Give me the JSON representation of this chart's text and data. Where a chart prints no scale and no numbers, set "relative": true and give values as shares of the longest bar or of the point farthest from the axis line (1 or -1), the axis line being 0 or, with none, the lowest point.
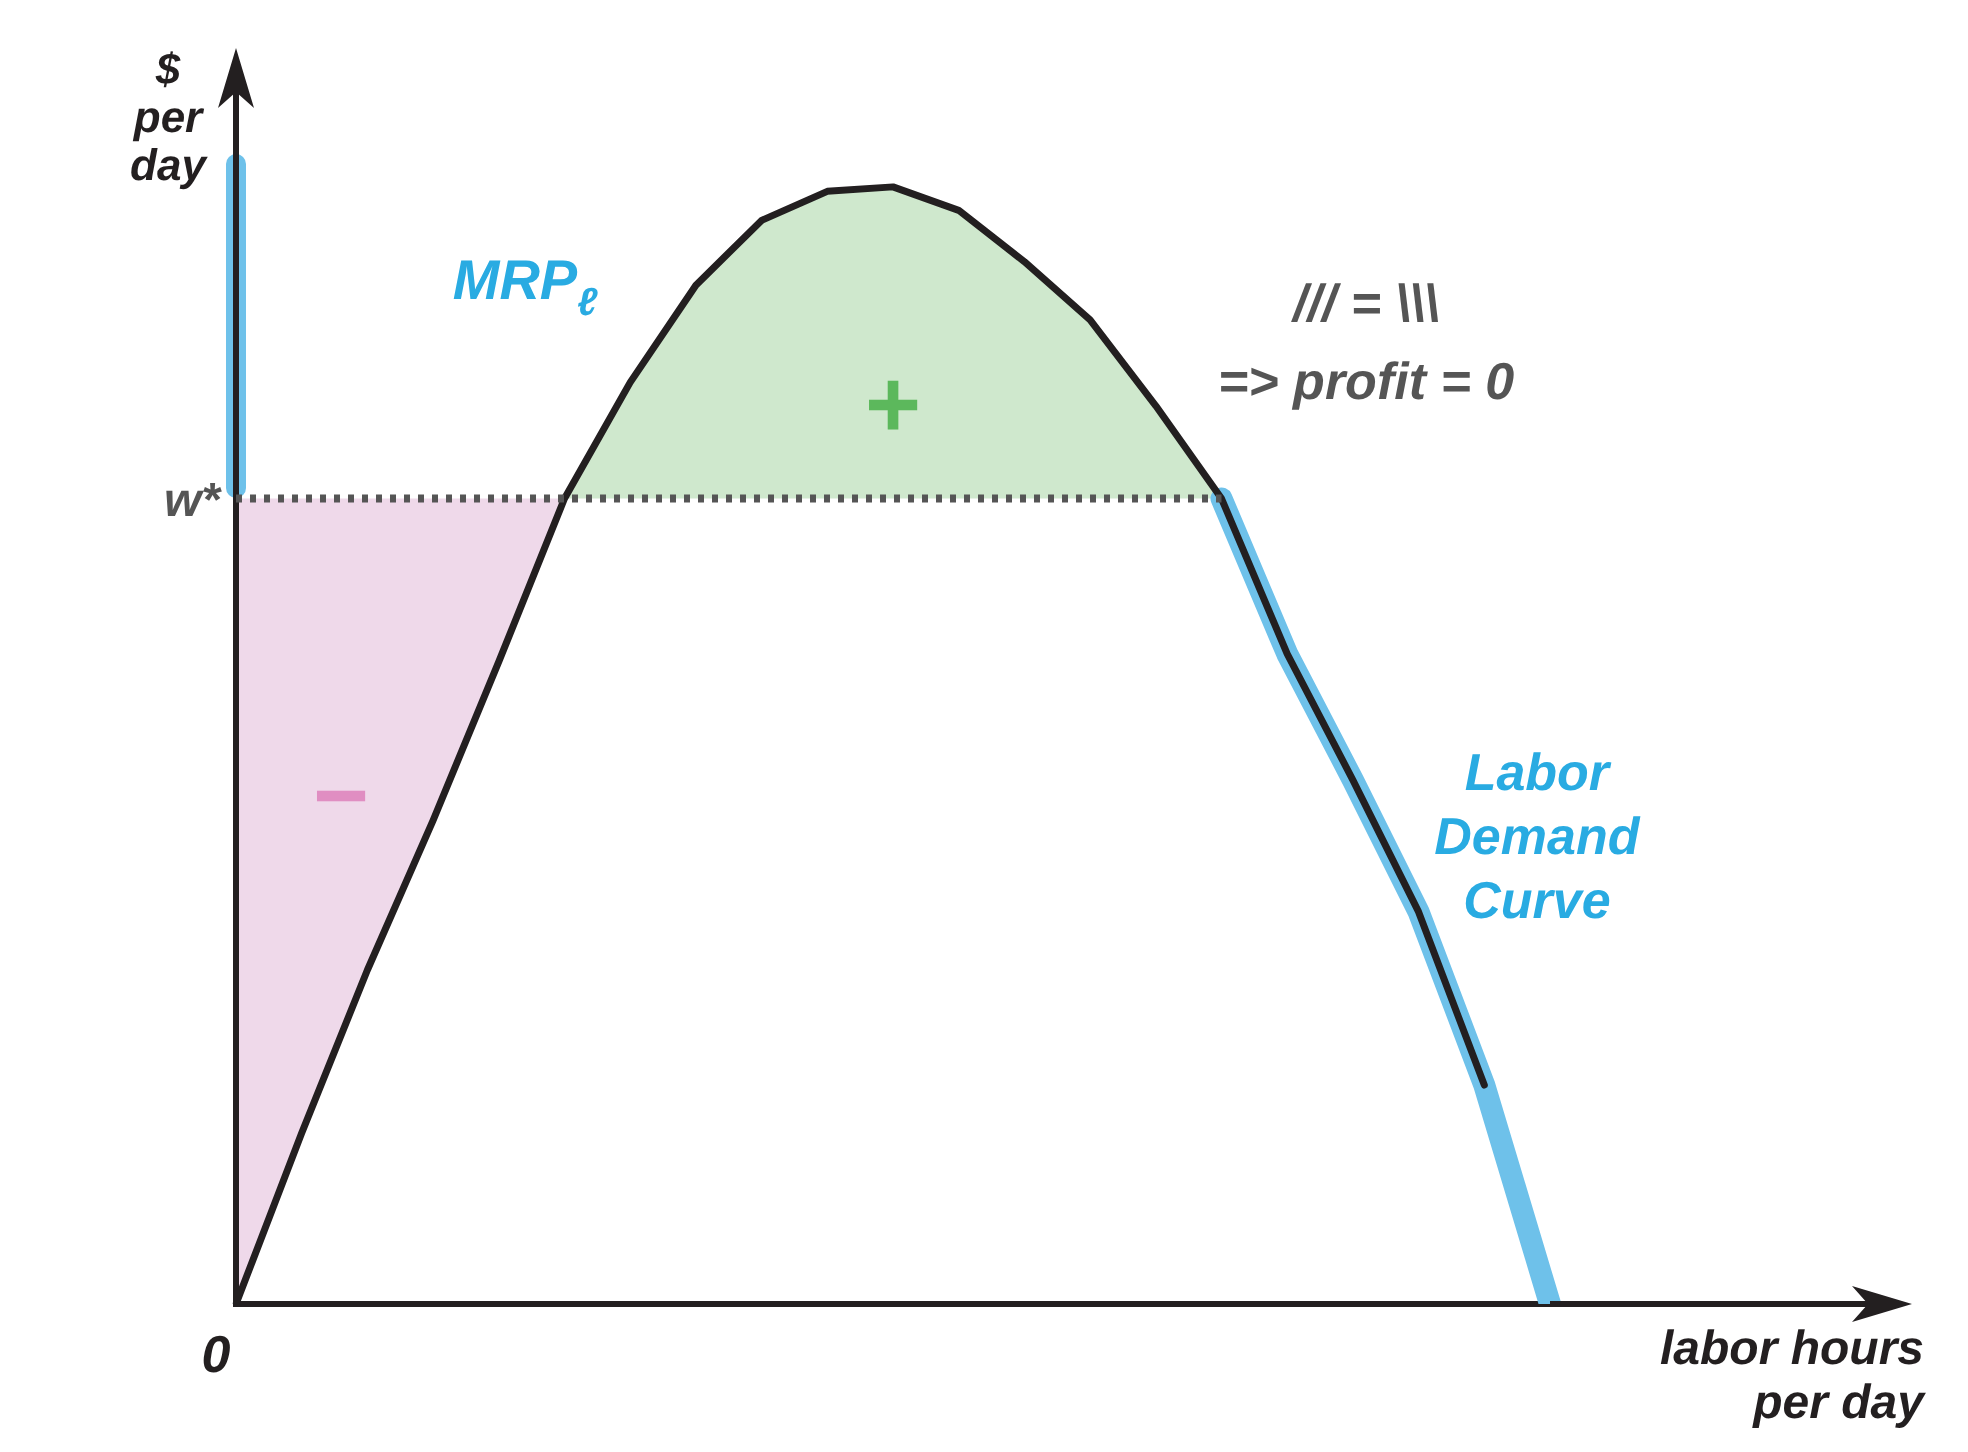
{
  "chart_data": {
    "type": "line",
    "relative": true,
    "ylabel": "$ per day",
    "xlabel": "labor hours per day",
    "legend": false,
    "categories": [
      null,
      null,
      null,
      null,
      null,
      null,
      null,
      null,
      null,
      null,
      null,
      null,
      null,
      null,
      null,
      null,
      null,
      null,
      null,
      null,
      null
    ],
    "series": [
      {
        "name": "Labor Demand Curve",
        "color": "#6ec1ea",
        "values": [
          null,
          null,
          null,
          null,
          null,
          null,
          null,
          null,
          null,
          null,
          null,
          null,
          null,
          null,
          null,
          0.721,
          0.582,
          0.469,
          0.351,
          0.196,
          0
        ]
      },
      {
        "name": "MRP$_{ℓ}$",
        "color": "#231f20",
        "values": [
          0,
          0.153,
          0.299,
          0.433,
          0.575,
          0.721,
          0.825,
          0.912,
          0.97,
          0.996,
          1,
          0.979,
          0.933,
          0.881,
          0.804,
          0.721,
          0.582,
          0.469,
          0.351,
          0.196,
          null
        ]
      }
    ],
    "ref_lines": [
      {
        "axis": "y",
        "value": 0.721,
        "label": "w*",
        "color": "#555555",
        "line_style": "dotted"
      }
    ],
    "annotations": [
      "+",
      "−",
      "/// = \\\\\\",
      "=> profit = 0",
      "0"
    ]
  }
}
